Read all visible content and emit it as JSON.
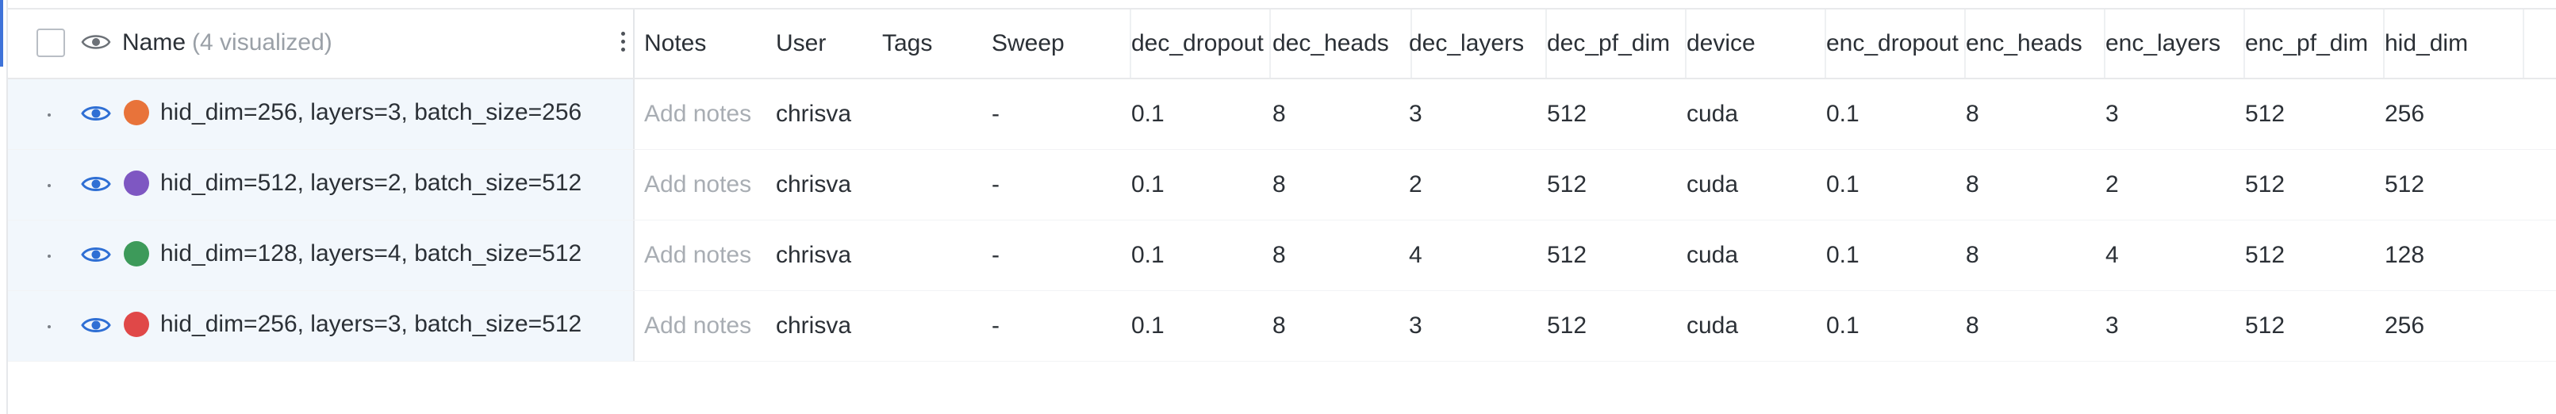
{
  "header": {
    "name_title": "Name",
    "visualized_count": "(4 visualized)"
  },
  "columns": [
    {
      "key": "notes",
      "label": "Notes"
    },
    {
      "key": "user",
      "label": "User"
    },
    {
      "key": "tags",
      "label": "Tags"
    },
    {
      "key": "sweep",
      "label": "Sweep"
    },
    {
      "key": "dec_dropout",
      "label": "dec_dropout"
    },
    {
      "key": "dec_heads",
      "label": "dec_heads"
    },
    {
      "key": "dec_layers",
      "label": "dec_layers"
    },
    {
      "key": "dec_pf_dim",
      "label": "dec_pf_dim"
    },
    {
      "key": "device",
      "label": "device"
    },
    {
      "key": "enc_dropout",
      "label": "enc_dropout"
    },
    {
      "key": "enc_heads",
      "label": "enc_heads"
    },
    {
      "key": "enc_layers",
      "label": "enc_layers"
    },
    {
      "key": "enc_pf_dim",
      "label": "enc_pf_dim"
    },
    {
      "key": "hid_dim",
      "label": "hid_dim"
    }
  ],
  "rows": [
    {
      "name": "hid_dim=256, layers=3, batch_size=256",
      "color": "#e8733a",
      "notes": "Add notes",
      "user": "chrisva",
      "tags": "",
      "sweep": "-",
      "dec_dropout": "0.1",
      "dec_heads": "8",
      "dec_layers": "3",
      "dec_pf_dim": "512",
      "device": "cuda",
      "enc_dropout": "0.1",
      "enc_heads": "8",
      "enc_layers": "3",
      "enc_pf_dim": "512",
      "hid_dim": "256"
    },
    {
      "name": "hid_dim=512, layers=2, batch_size=512",
      "color": "#7e57c2",
      "notes": "Add notes",
      "user": "chrisva",
      "tags": "",
      "sweep": "-",
      "dec_dropout": "0.1",
      "dec_heads": "8",
      "dec_layers": "2",
      "dec_pf_dim": "512",
      "device": "cuda",
      "enc_dropout": "0.1",
      "enc_heads": "8",
      "enc_layers": "2",
      "enc_pf_dim": "512",
      "hid_dim": "512"
    },
    {
      "name": "hid_dim=128, layers=4, batch_size=512",
      "color": "#3d9a5a",
      "notes": "Add notes",
      "user": "chrisva",
      "tags": "",
      "sweep": "-",
      "dec_dropout": "0.1",
      "dec_heads": "8",
      "dec_layers": "4",
      "dec_pf_dim": "512",
      "device": "cuda",
      "enc_dropout": "0.1",
      "enc_heads": "8",
      "enc_layers": "4",
      "enc_pf_dim": "512",
      "hid_dim": "128"
    },
    {
      "name": "hid_dim=256, layers=3, batch_size=512",
      "color": "#e04848",
      "notes": "Add notes",
      "user": "chrisva",
      "tags": "",
      "sweep": "-",
      "dec_dropout": "0.1",
      "dec_heads": "8",
      "dec_layers": "3",
      "dec_pf_dim": "512",
      "device": "cuda",
      "enc_dropout": "0.1",
      "enc_heads": "8",
      "enc_layers": "3",
      "enc_pf_dim": "512",
      "hid_dim": "256"
    }
  ],
  "colors": {
    "accent": "#3f73d9",
    "eye_icon": "#2f6fd4",
    "name_column_bg": "#f2f7fc",
    "placeholder_text": "#a8adb3"
  }
}
